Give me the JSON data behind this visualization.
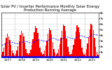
{
  "title": "Solar PV / Inverter Performance Monthly Solar Energy Production Running Average",
  "bar_color": "#FF0000",
  "avg_line_color": "#0000FF",
  "bar_values": [
    55,
    100,
    180,
    260,
    350,
    420,
    380,
    310,
    220,
    130,
    70,
    40,
    60,
    120,
    200,
    290,
    400,
    480,
    440,
    370,
    260,
    150,
    80,
    45,
    70,
    140,
    220,
    320,
    450,
    560,
    520,
    440,
    310,
    170,
    90,
    50,
    65,
    130,
    210,
    300,
    420,
    530,
    490,
    410,
    280,
    155,
    82,
    48,
    72,
    150,
    240,
    350,
    480,
    590,
    560,
    470,
    340,
    185,
    95,
    52,
    68,
    140,
    230,
    330,
    460,
    570,
    540,
    450,
    320,
    175,
    88,
    50,
    75,
    155,
    245,
    360,
    495,
    605,
    575,
    485,
    350,
    190,
    97,
    53
  ],
  "avg_values": [
    220,
    225,
    230,
    238,
    248,
    258,
    265,
    270,
    272,
    268,
    262,
    255,
    248,
    244,
    241,
    246,
    256,
    267,
    275,
    282,
    287,
    284,
    278,
    271,
    264,
    260,
    257,
    264,
    276,
    290,
    302,
    311,
    316,
    313,
    306,
    299,
    292,
    288,
    285,
    291,
    303,
    317,
    328,
    337,
    342,
    338,
    331,
    323,
    315,
    311,
    308,
    315,
    328,
    342,
    353,
    362,
    367,
    363,
    356,
    348,
    340,
    336,
    333,
    339,
    351,
    364,
    375,
    383,
    388,
    384,
    377,
    369,
    361,
    357,
    354,
    361,
    374,
    388,
    399,
    407,
    412,
    408,
    401,
    393
  ],
  "ylim": [
    0,
    800
  ],
  "yticks": [
    100,
    200,
    300,
    400,
    500,
    600,
    700,
    800
  ],
  "ytick_labels": [
    "1k",
    "2k",
    "3k",
    "4k",
    "5k",
    "6k",
    "7k",
    "8k"
  ],
  "background_color": "#FFFFFF",
  "grid_color": "#AAAAAA",
  "title_fontsize": 3.8,
  "tick_fontsize": 3.2,
  "n_bars": 84,
  "n_years": 7,
  "start_year": 2017
}
